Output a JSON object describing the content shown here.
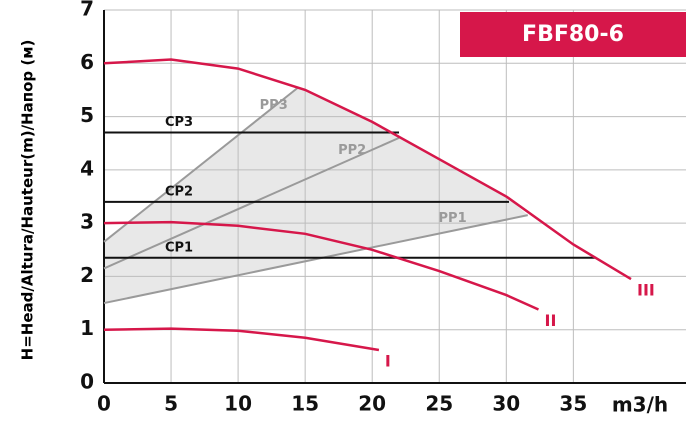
{
  "chart_data": {
    "type": "line",
    "title": "FBF80-6",
    "ylabel": "H=Head/Altura/Hauteur(m)/Напор (м)",
    "xlabel": "m3/h",
    "xlim": [
      0,
      43.4
    ],
    "ylim": [
      0,
      7
    ],
    "xticks": [
      0,
      5,
      10,
      15,
      20,
      25,
      30,
      35
    ],
    "yticks": [
      0,
      1,
      2,
      3,
      4,
      5,
      6,
      7
    ],
    "grid": true,
    "curves": [
      {
        "name": "I",
        "color": "#d6174a",
        "x": [
          0,
          5,
          10,
          15,
          20.5
        ],
        "values": [
          1.0,
          1.02,
          0.98,
          0.85,
          0.62
        ]
      },
      {
        "name": "II",
        "color": "#d6174a",
        "x": [
          0,
          5,
          10,
          15,
          20,
          25,
          30,
          32.4
        ],
        "values": [
          3.0,
          3.02,
          2.95,
          2.8,
          2.5,
          2.1,
          1.65,
          1.38
        ]
      },
      {
        "name": "III",
        "color": "#d6174a",
        "x": [
          0,
          5,
          10,
          15,
          20,
          25,
          30,
          35,
          39.3
        ],
        "values": [
          6.0,
          6.07,
          5.9,
          5.5,
          4.9,
          4.2,
          3.5,
          2.6,
          1.95
        ]
      }
    ],
    "pp_lines": [
      {
        "name": "PP1",
        "color": "#9a9a9a",
        "x": [
          0,
          31.6
        ],
        "values": [
          1.5,
          3.15
        ]
      },
      {
        "name": "PP2",
        "color": "#9a9a9a",
        "x": [
          0,
          22
        ],
        "values": [
          2.15,
          4.6
        ]
      },
      {
        "name": "PP3",
        "color": "#9a9a9a",
        "x": [
          0,
          14.5
        ],
        "values": [
          2.65,
          5.55
        ]
      }
    ],
    "cp_lines": [
      {
        "name": "CP1",
        "color": "#111111",
        "x": [
          0,
          36.7
        ],
        "values": [
          2.35,
          2.35
        ]
      },
      {
        "name": "CP2",
        "color": "#111111",
        "x": [
          0,
          30.2
        ],
        "values": [
          3.4,
          3.4
        ]
      },
      {
        "name": "CP3",
        "color": "#111111",
        "x": [
          0,
          22
        ],
        "values": [
          4.7,
          4.7
        ]
      }
    ]
  }
}
